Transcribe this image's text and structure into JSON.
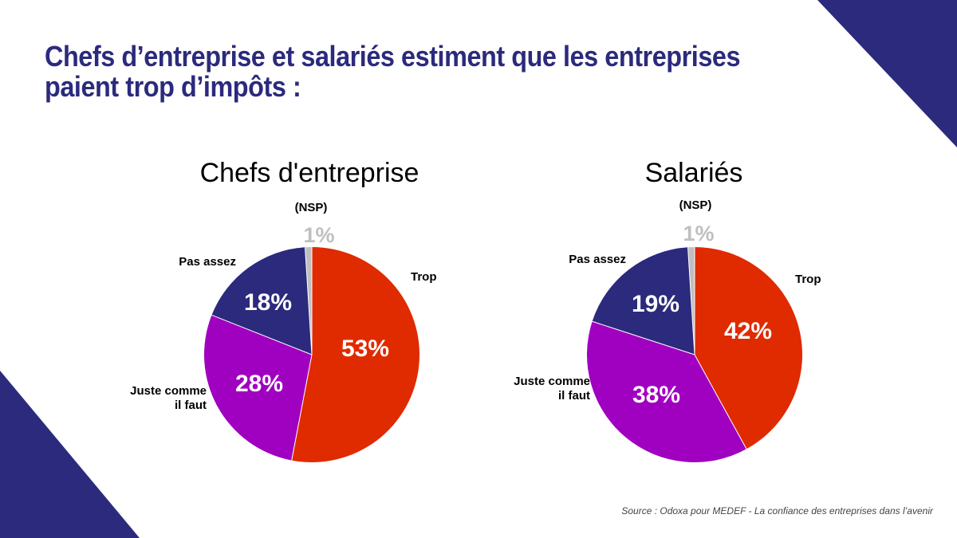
{
  "title_lines": [
    "Chefs d’entreprise et salariés estiment que les entreprises",
    "paient trop d’impôts :"
  ],
  "source": "Source :  Odoxa pour MEDEF - La confiance des entreprises dans l’avenir",
  "colors": {
    "title": "#2b2a7d",
    "corner": "#2b2a7d",
    "trop": "#e02a00",
    "juste": "#a000c0",
    "pas_assez": "#2b2a7d",
    "nsp": "#bfbfbf"
  },
  "chart_data": [
    {
      "type": "pie",
      "title": "Chefs d'entreprise",
      "slices": [
        {
          "key": "trop",
          "label": "Trop",
          "value": 53,
          "value_label": "53%"
        },
        {
          "key": "juste",
          "label": "Juste comme\nil faut",
          "value": 28,
          "value_label": "28%"
        },
        {
          "key": "pas_assez",
          "label": "Pas assez",
          "value": 18,
          "value_label": "18%"
        },
        {
          "key": "nsp",
          "label": "(NSP)",
          "value": 1,
          "value_label": "1%"
        }
      ]
    },
    {
      "type": "pie",
      "title": "Salariés",
      "slices": [
        {
          "key": "trop",
          "label": "Trop",
          "value": 42,
          "value_label": "42%"
        },
        {
          "key": "juste",
          "label": "Juste comme\nil faut",
          "value": 38,
          "value_label": "38%"
        },
        {
          "key": "pas_assez",
          "label": "Pas assez",
          "value": 19,
          "value_label": "19%"
        },
        {
          "key": "nsp",
          "label": "(NSP)",
          "value": 1,
          "value_label": "1%"
        }
      ]
    }
  ]
}
